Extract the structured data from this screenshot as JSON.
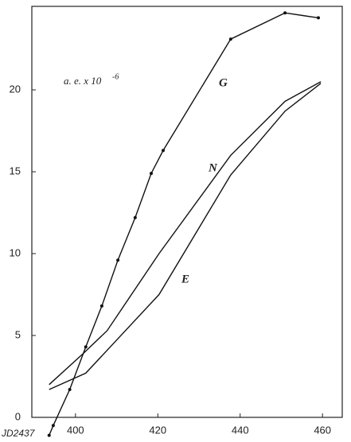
{
  "chart_data": {
    "type": "line",
    "x_label": "JD2437",
    "annotations": [
      "a. e. x 10",
      "-6"
    ],
    "xlim": [
      389.4,
      464.8
    ],
    "ylim": [
      0,
      25.1
    ],
    "xticks": [
      400,
      420,
      440,
      460
    ],
    "yticks": [
      0,
      5,
      10,
      15,
      20
    ],
    "series": [
      {
        "name": "G",
        "color": "#111111",
        "markers": true,
        "x": [
          393.6,
          394.6,
          398.6,
          402.5,
          406.4,
          410.3,
          414.5,
          418.4,
          421.3,
          437.7,
          450.9,
          459.0
        ],
        "values": [
          -1.1,
          -0.5,
          1.7,
          4.3,
          6.8,
          9.6,
          12.2,
          14.9,
          16.3,
          23.1,
          24.7,
          24.4
        ]
      },
      {
        "name": "N",
        "color": "#111111",
        "markers": false,
        "x": [
          393.6,
          401.9,
          407.7,
          420.3,
          437.7,
          450.9,
          459.6
        ],
        "values": [
          2.0,
          3.9,
          5.3,
          10.0,
          16.0,
          19.3,
          20.5
        ]
      },
      {
        "name": "E",
        "color": "#111111",
        "markers": false,
        "x": [
          393.6,
          402.5,
          407.7,
          420.3,
          437.7,
          450.9,
          459.6
        ],
        "values": [
          1.7,
          2.7,
          4.1,
          7.5,
          14.8,
          18.7,
          20.4
        ]
      }
    ]
  }
}
